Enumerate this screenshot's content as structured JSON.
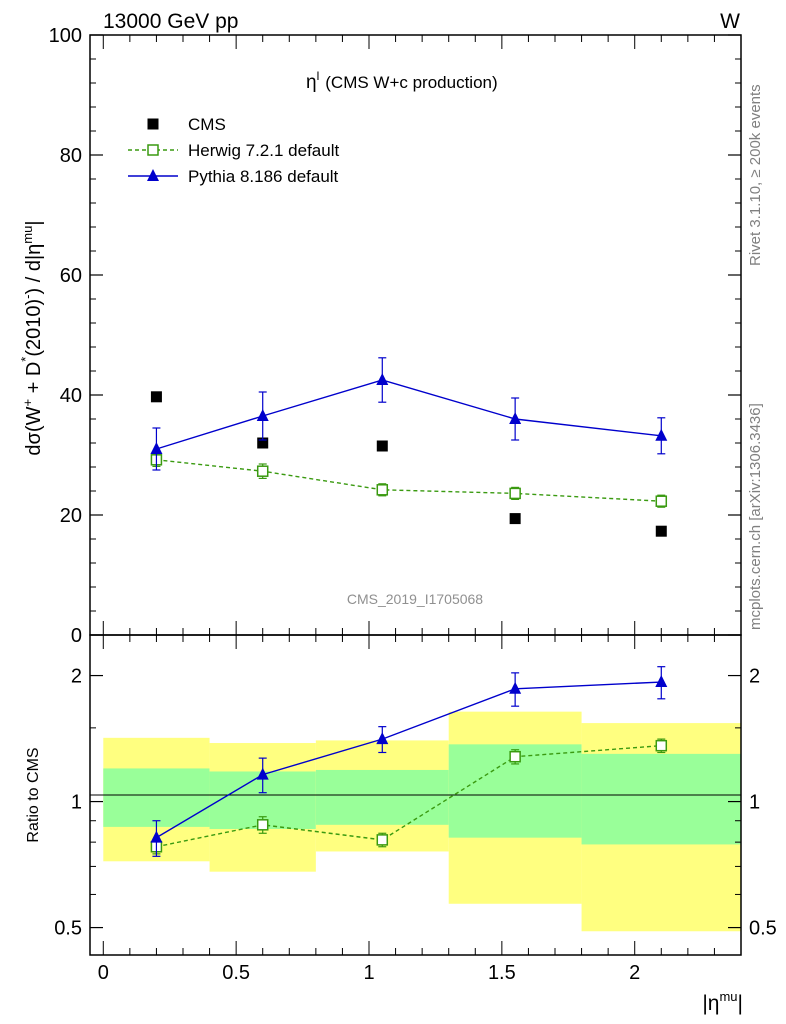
{
  "header": {
    "left": "13000 GeV pp",
    "right": "W"
  },
  "side_texts": {
    "rivet": "Rivet 3.1.10, ≥ 200k events",
    "mcplots": "mcplots.cern.ch [arXiv:1306.3436]"
  },
  "watermark": "CMS_2019_I1705068",
  "chart_data": [
    {
      "type": "scatter",
      "panel": "main",
      "title_symbol": "η",
      "title_sup": "l",
      "title_rest": "(CMS W+c production)",
      "ylabel": "dσ(W⁺ + D*(2010)⁻) / d|ηᵐᵘ|",
      "ylim": [
        0,
        100
      ],
      "yticks": [
        0,
        20,
        40,
        60,
        80,
        100
      ],
      "ytick_labels": [
        "0",
        "20",
        "40",
        "60",
        "80",
        "100"
      ],
      "xlim": [
        -0.05,
        2.4
      ],
      "legend": {
        "position": "top-left"
      },
      "series": [
        {
          "name": "CMS",
          "style": "marker-only",
          "color": "#000000",
          "marker": "filled-square",
          "points": [
            {
              "x": 0.2,
              "y": 39.7
            },
            {
              "x": 0.6,
              "y": 32.0
            },
            {
              "x": 1.05,
              "y": 31.5
            },
            {
              "x": 1.55,
              "y": 19.4
            },
            {
              "x": 2.1,
              "y": 17.3
            }
          ]
        },
        {
          "name": "Herwig 7.2.1 default",
          "style": "dashed",
          "color": "#3a9a10",
          "marker": "open-square",
          "points": [
            {
              "x": 0.2,
              "y": 29.2,
              "err": 1.1
            },
            {
              "x": 0.6,
              "y": 27.3,
              "err": 1.2
            },
            {
              "x": 1.05,
              "y": 24.2,
              "err": 1.0
            },
            {
              "x": 1.55,
              "y": 23.6,
              "err": 1.0
            },
            {
              "x": 2.1,
              "y": 22.3,
              "err": 1.0
            }
          ]
        },
        {
          "name": "Pythia 8.186 default",
          "style": "solid",
          "color": "#0000cc",
          "marker": "filled-triangle",
          "points": [
            {
              "x": 0.2,
              "y": 31.0,
              "err": 3.5
            },
            {
              "x": 0.6,
              "y": 36.5,
              "err": 4.0
            },
            {
              "x": 1.05,
              "y": 42.5,
              "err": 3.7
            },
            {
              "x": 1.55,
              "y": 36.0,
              "err": 3.5
            },
            {
              "x": 2.1,
              "y": 33.2,
              "err": 3.0
            }
          ]
        }
      ]
    },
    {
      "type": "scatter",
      "panel": "ratio",
      "ylabel": "Ratio to CMS",
      "xlabel_symbol": "|η",
      "xlabel_sup": "mu",
      "xlabel_close": "|",
      "yscale": "log",
      "ylim": [
        0.43,
        2.5
      ],
      "yticks": [
        0.5,
        1,
        2
      ],
      "ytick_labels": [
        "0.5",
        "1",
        "2"
      ],
      "xlim": [
        -0.05,
        2.4
      ],
      "xticks": [
        0,
        0.5,
        1,
        1.5,
        2
      ],
      "xtick_labels": [
        "0",
        "0.5",
        "1",
        "1.5",
        "2"
      ],
      "bands": [
        {
          "x0": 0.0,
          "x1": 0.4,
          "yellow": [
            0.72,
            1.42
          ],
          "green": [
            0.87,
            1.2
          ]
        },
        {
          "x0": 0.4,
          "x1": 0.8,
          "yellow": [
            0.68,
            1.38
          ],
          "green": [
            0.86,
            1.18
          ]
        },
        {
          "x0": 0.8,
          "x1": 1.3,
          "yellow": [
            0.76,
            1.4
          ],
          "green": [
            0.88,
            1.19
          ]
        },
        {
          "x0": 1.3,
          "x1": 1.8,
          "yellow": [
            0.57,
            1.64
          ],
          "green": [
            0.82,
            1.37
          ]
        },
        {
          "x0": 1.8,
          "x1": 2.4,
          "yellow": [
            0.49,
            1.54
          ],
          "green": [
            0.79,
            1.3
          ]
        }
      ],
      "series": [
        {
          "name": "Herwig 7.2.1 default",
          "style": "dashed",
          "color": "#3a9a10",
          "marker": "open-square",
          "points": [
            {
              "x": 0.2,
              "y": 0.78,
              "err": 0.03
            },
            {
              "x": 0.6,
              "y": 0.88,
              "err": 0.04
            },
            {
              "x": 1.05,
              "y": 0.81,
              "err": 0.03
            },
            {
              "x": 1.55,
              "y": 1.28,
              "err": 0.05
            },
            {
              "x": 2.1,
              "y": 1.36,
              "err": 0.05
            }
          ]
        },
        {
          "name": "Pythia 8.186 default",
          "style": "solid",
          "color": "#0000cc",
          "marker": "filled-triangle",
          "points": [
            {
              "x": 0.2,
              "y": 0.82,
              "err": 0.08
            },
            {
              "x": 0.6,
              "y": 1.16,
              "err": 0.11
            },
            {
              "x": 1.05,
              "y": 1.41,
              "err": 0.1
            },
            {
              "x": 1.55,
              "y": 1.86,
              "err": 0.17
            },
            {
              "x": 2.1,
              "y": 1.93,
              "err": 0.17
            }
          ]
        }
      ]
    }
  ]
}
